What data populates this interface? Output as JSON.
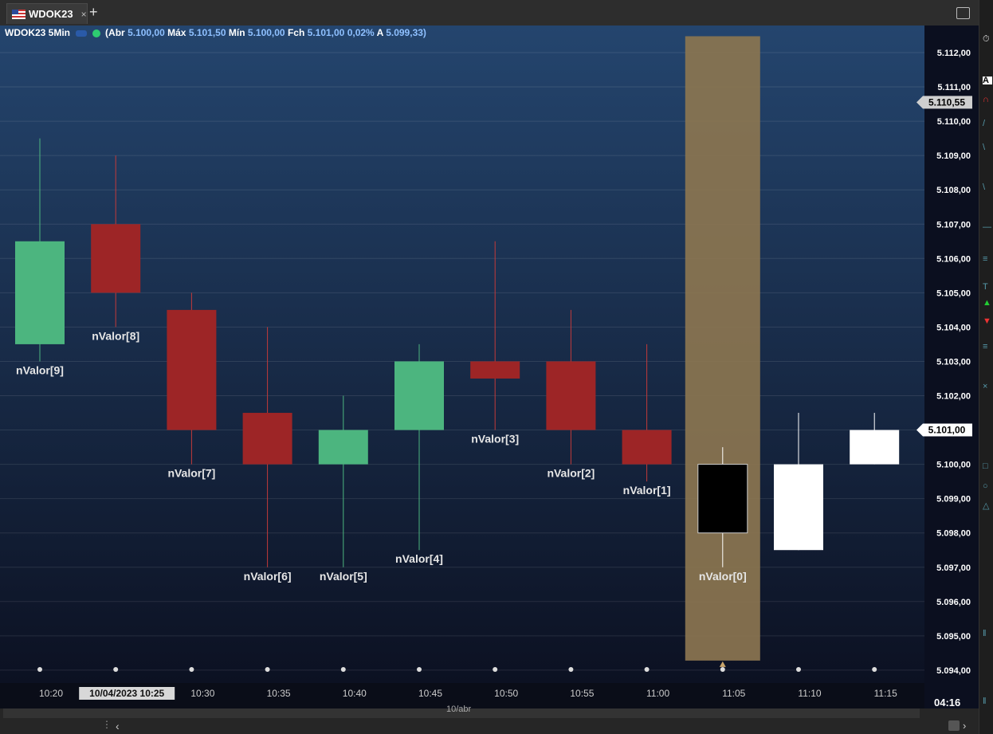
{
  "tab": {
    "title": "WDOK23",
    "close": "×",
    "add": "+"
  },
  "info": {
    "symbol": "WDOK23 5Min",
    "abr_label": "(Abr",
    "abr": "5.100,00",
    "max_label": "Máx",
    "max": "5.101,50",
    "min_label": "Mín",
    "min": "5.100,00",
    "fch_label": "Fch",
    "fch": "5.101,00",
    "pct": "0,02%",
    "a_label": "A",
    "a": "5.099,33)"
  },
  "colors": {
    "up": "#4cb57f",
    "down": "#9d2526",
    "highlight": "#8b7550",
    "bg_top": "#24456e",
    "bg_bottom": "#0b0f1f"
  },
  "price_axis": [
    "5.112,00",
    "5.111,00",
    "5.110,00",
    "5.109,00",
    "5.108,00",
    "5.107,00",
    "5.106,00",
    "5.105,00",
    "5.104,00",
    "5.103,00",
    "5.102,00",
    "5.101,00",
    "5.100,00",
    "5.099,00",
    "5.098,00",
    "5.097,00",
    "5.096,00",
    "5.095,00",
    "5.094,00"
  ],
  "price_markers": [
    {
      "label": "5.110,55",
      "value": 5110.55,
      "style": "grey"
    },
    {
      "label": "5.101,00",
      "value": 5101.0,
      "style": "white"
    }
  ],
  "time_axis": [
    "10:20",
    "10/04/2023 10:25",
    "10:30",
    "10:35",
    "10:40",
    "10:45",
    "10:50",
    "10:55",
    "11:00",
    "11:05",
    "11:10",
    "11:15"
  ],
  "date_label": "10/abr",
  "clock": "04:16",
  "chart_data": {
    "type": "candlestick",
    "ylim": [
      5094,
      5112.5
    ],
    "candles": [
      {
        "time": "10:20",
        "open": 5103.5,
        "high": 5109.5,
        "low": 5103.0,
        "close": 5106.5,
        "color": "up",
        "label": "nValor[9]",
        "label_pos": "below"
      },
      {
        "time": "10:25",
        "open": 5107.0,
        "high": 5109.0,
        "low": 5104.0,
        "close": 5105.0,
        "color": "down",
        "label": "nValor[8]",
        "label_pos": "below"
      },
      {
        "time": "10:30",
        "open": 5104.5,
        "high": 5105.0,
        "low": 5100.0,
        "close": 5101.0,
        "color": "down",
        "label": "nValor[7]",
        "label_pos": "below"
      },
      {
        "time": "10:35",
        "open": 5101.5,
        "high": 5104.0,
        "low": 5097.0,
        "close": 5100.0,
        "color": "down",
        "label": "nValor[6]",
        "label_pos": "below"
      },
      {
        "time": "10:40",
        "open": 5100.0,
        "high": 5102.0,
        "low": 5097.0,
        "close": 5101.0,
        "color": "up",
        "label": "nValor[5]",
        "label_pos": "below"
      },
      {
        "time": "10:45",
        "open": 5101.0,
        "high": 5103.5,
        "low": 5097.5,
        "close": 5103.0,
        "color": "up",
        "label": "nValor[4]",
        "label_pos": "below"
      },
      {
        "time": "10:50",
        "open": 5103.0,
        "high": 5106.5,
        "low": 5101.0,
        "close": 5102.5,
        "color": "down",
        "label": "nValor[3]",
        "label_pos": "below"
      },
      {
        "time": "10:55",
        "open": 5103.0,
        "high": 5104.5,
        "low": 5100.0,
        "close": 5101.0,
        "color": "down",
        "label": "nValor[2]",
        "label_pos": "below"
      },
      {
        "time": "11:00",
        "open": 5101.0,
        "high": 5103.5,
        "low": 5099.5,
        "close": 5100.0,
        "color": "down",
        "label": "nValor[1]",
        "label_pos": "below"
      },
      {
        "time": "11:05",
        "open": 5100.0,
        "high": 5100.5,
        "low": 5097.0,
        "close": 5098.0,
        "color": "black",
        "label": "nValor[0]",
        "label_pos": "below",
        "highlight": true
      },
      {
        "time": "11:10",
        "open": 5097.5,
        "high": 5101.5,
        "low": 5097.5,
        "close": 5100.0,
        "color": "white",
        "label": ""
      },
      {
        "time": "11:15",
        "open": 5100.0,
        "high": 5101.5,
        "low": 5100.0,
        "close": 5101.0,
        "color": "white",
        "label": ""
      }
    ]
  }
}
